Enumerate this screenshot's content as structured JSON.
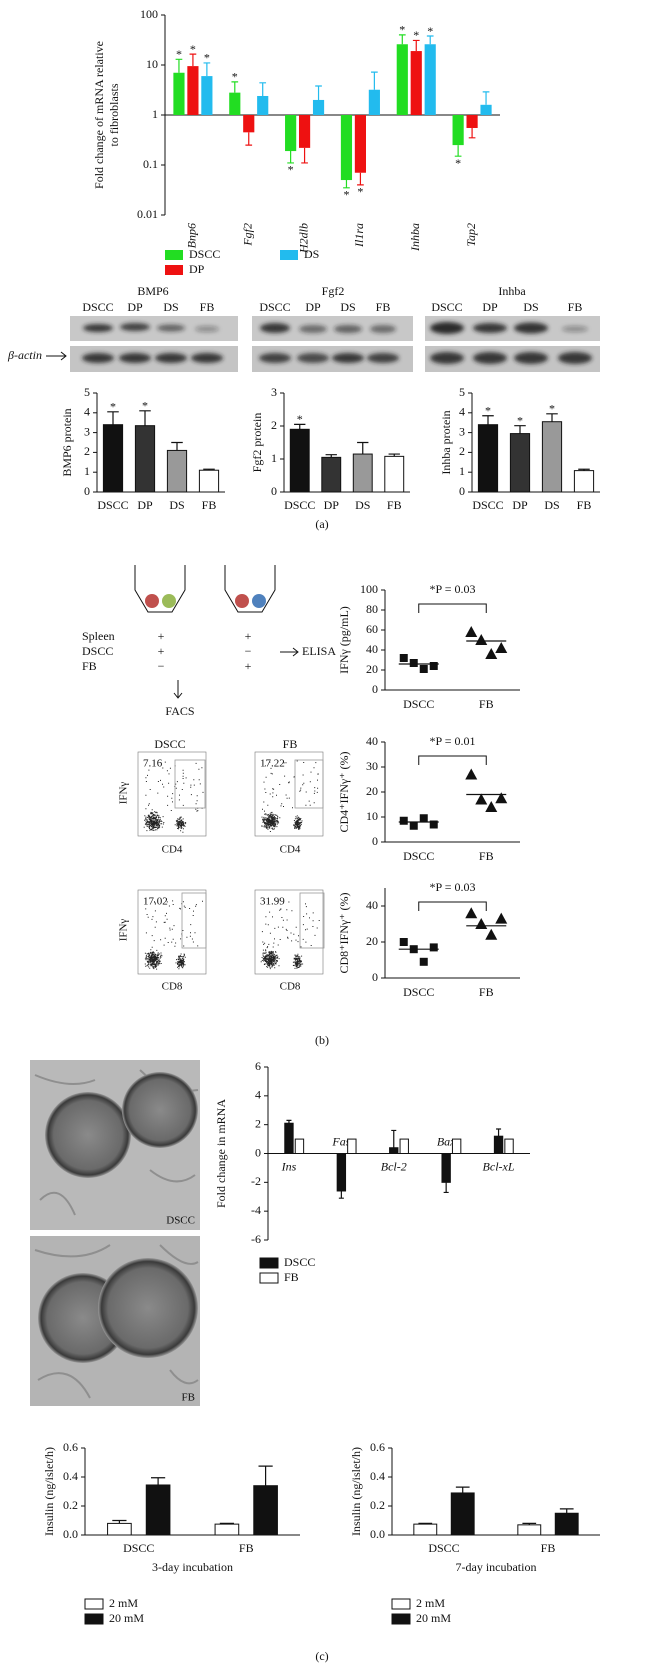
{
  "chart_data": [
    {
      "type": "bar",
      "log_scale": true,
      "ylabel": [
        "Fold change of mRNA relative",
        "to fibroblasts"
      ],
      "ylim": [
        0.01,
        100
      ],
      "yticks": [
        0.01,
        0.1,
        1,
        10,
        100
      ],
      "categories": [
        "Bnp6",
        "Fgf2",
        "H2dlb",
        "Il1ra",
        "Inhba",
        "Tap2"
      ],
      "category_style": "italic",
      "series": [
        {
          "name": "DSCC",
          "color": "#22dd22",
          "values": [
            7,
            2.8,
            0.19,
            0.05,
            26,
            0.25
          ],
          "errors": [
            6,
            1.8,
            0.08,
            0.015,
            14,
            0.1
          ],
          "significance": [
            "*",
            "*",
            "*",
            "*",
            "*",
            "*"
          ]
        },
        {
          "name": "DP",
          "color": "#ee1111",
          "values": [
            9.5,
            0.45,
            0.22,
            0.07,
            19,
            0.55
          ],
          "errors": [
            7,
            0.2,
            0.11,
            0.03,
            12,
            0.2
          ],
          "significance": [
            "*",
            null,
            null,
            "*",
            "*",
            null
          ]
        },
        {
          "name": "DS",
          "color": "#22bbee",
          "values": [
            6,
            2.4,
            2.0,
            3.2,
            26,
            1.6
          ],
          "errors": [
            5,
            2,
            1.8,
            4,
            12,
            1.3
          ],
          "significance": [
            "*",
            null,
            null,
            null,
            "*",
            null
          ]
        }
      ]
    },
    {
      "type": "bar",
      "ylabel": "BMP6 protein",
      "ylim": [
        0,
        5
      ],
      "yticks": [
        0,
        1,
        2,
        3,
        4,
        5
      ],
      "categories": [
        "DSCC",
        "DP",
        "DS",
        "FB"
      ],
      "series": [
        {
          "colors": [
            "#111111",
            "#333333",
            "#999999",
            "#ffffff"
          ],
          "values": [
            3.4,
            3.35,
            2.1,
            1.1
          ],
          "errors": [
            0.65,
            0.75,
            0.4,
            0.05
          ],
          "significance": [
            "*",
            "*",
            null,
            null
          ]
        }
      ]
    },
    {
      "type": "bar",
      "ylabel": "Fgf2 protein",
      "ylim": [
        0,
        3
      ],
      "yticks": [
        0,
        1,
        2,
        3
      ],
      "categories": [
        "DSCC",
        "DP",
        "DS",
        "FB"
      ],
      "series": [
        {
          "colors": [
            "#111111",
            "#333333",
            "#999999",
            "#ffffff"
          ],
          "values": [
            1.9,
            1.05,
            1.15,
            1.08
          ],
          "errors": [
            0.15,
            0.08,
            0.35,
            0.07
          ],
          "significance": [
            "*",
            null,
            null,
            null
          ]
        }
      ]
    },
    {
      "type": "bar",
      "ylabel": "Inhba protein",
      "ylim": [
        0,
        5
      ],
      "yticks": [
        0,
        1,
        2,
        3,
        4,
        5
      ],
      "categories": [
        "DSCC",
        "DP",
        "DS",
        "FB"
      ],
      "series": [
        {
          "colors": [
            "#111111",
            "#333333",
            "#999999",
            "#ffffff"
          ],
          "values": [
            3.4,
            2.95,
            3.55,
            1.08
          ],
          "errors": [
            0.45,
            0.4,
            0.4,
            0.07
          ],
          "significance": [
            "*",
            "*",
            "*",
            null
          ]
        }
      ]
    },
    {
      "type": "strip",
      "ylabel": "IFNγ (pg/mL)",
      "ylim": [
        0,
        100
      ],
      "yticks": [
        0,
        20,
        40,
        60,
        80,
        100
      ],
      "categories": [
        "DSCC",
        "FB"
      ],
      "markers": [
        "square",
        "triangle"
      ],
      "values": [
        [
          32,
          27,
          21,
          24
        ],
        [
          58,
          50,
          36,
          42
        ]
      ],
      "means": [
        26,
        49
      ],
      "annotation": "*P = 0.03"
    },
    {
      "type": "strip",
      "ylabel": "CD4⁺IFNγ⁺ (%)",
      "ylim": [
        0,
        40
      ],
      "yticks": [
        0,
        10,
        20,
        30,
        40
      ],
      "categories": [
        "DSCC",
        "FB"
      ],
      "markers": [
        "square",
        "triangle"
      ],
      "values": [
        [
          8.5,
          6.5,
          9.5,
          7
        ],
        [
          27,
          17,
          14,
          17.5
        ]
      ],
      "means": [
        8,
        19
      ],
      "annotation": "*P = 0.01"
    },
    {
      "type": "strip",
      "ylabel": "CD8⁺IFNγ⁺ (%)",
      "ylim": [
        0,
        50
      ],
      "yticks": [
        0,
        20,
        40
      ],
      "categories": [
        "DSCC",
        "FB"
      ],
      "markers": [
        "square",
        "triangle"
      ],
      "values": [
        [
          20,
          16,
          9,
          17
        ],
        [
          36,
          30,
          24,
          33
        ]
      ],
      "means": [
        16,
        29
      ],
      "annotation": "*P = 0.03"
    },
    {
      "type": "bar",
      "ylabel": "Fold change in mRNA",
      "ylim": [
        -6,
        6
      ],
      "yticks": [
        -6,
        -4,
        -2,
        0,
        2,
        4,
        6
      ],
      "categories": [
        "Ins",
        "Fas",
        "Bcl-2",
        "Bax",
        "Bcl-xL"
      ],
      "category_style": "italic",
      "series": [
        {
          "name": "DSCC",
          "color": "#111111",
          "values": [
            2.1,
            -2.6,
            0.4,
            -2.0,
            1.2
          ],
          "errors": [
            0.2,
            0.5,
            1.2,
            0.7,
            0.5
          ]
        },
        {
          "name": "FB",
          "color": "#ffffff",
          "values": [
            1,
            1,
            1,
            1,
            1
          ]
        }
      ]
    },
    {
      "type": "bar",
      "ylabel": "Insulin (ng/islet/h)",
      "xlabel": "3-day incubation",
      "ylim": [
        0,
        0.6
      ],
      "yticks": [
        {
          "value": 0,
          "label": "0.0"
        },
        0.2,
        0.4,
        0.6
      ],
      "categories": [
        "DSCC",
        "FB"
      ],
      "series": [
        {
          "name": "2 mM",
          "color": "#ffffff",
          "values": [
            0.08,
            0.075
          ],
          "errors": [
            0.02,
            0.005
          ]
        },
        {
          "name": "20 mM",
          "color": "#111111",
          "values": [
            0.345,
            0.34
          ],
          "errors": [
            0.05,
            0.135
          ]
        }
      ]
    },
    {
      "type": "bar",
      "ylabel": "Insulin (ng/islet/h)",
      "xlabel": "7-day incubation",
      "ylim": [
        0,
        0.6
      ],
      "yticks": [
        {
          "value": 0,
          "label": "0.0"
        },
        0.2,
        0.4,
        0.6
      ],
      "categories": [
        "DSCC",
        "FB"
      ],
      "series": [
        {
          "name": "2 mM",
          "color": "#ffffff",
          "values": [
            0.075,
            0.07
          ],
          "errors": [
            0.005,
            0.01
          ]
        },
        {
          "name": "20 mM",
          "color": "#111111",
          "values": [
            0.29,
            0.15
          ],
          "errors": [
            0.04,
            0.03
          ]
        }
      ]
    }
  ],
  "blots": [
    {
      "title": "BMP6",
      "lanes": [
        "DSCC",
        "DP",
        "DS",
        "FB"
      ]
    },
    {
      "title": "Fgf2",
      "lanes": [
        "DSCC",
        "DP",
        "DS",
        "FB"
      ]
    },
    {
      "title": "Inhba",
      "lanes": [
        "DSCC",
        "DP",
        "DS",
        "FB"
      ]
    }
  ],
  "loading_control": "β-actin",
  "diagram": {
    "rows": [
      {
        "label": "Spleen",
        "marks": [
          "+",
          "+"
        ]
      },
      {
        "label": "DSCC",
        "marks": [
          "+",
          "−"
        ]
      },
      {
        "label": "FB",
        "marks": [
          "−",
          "+"
        ]
      }
    ],
    "elisa": "ELISA",
    "facs": "FACS"
  },
  "flow": [
    {
      "y_label": "IFNγ",
      "plots": [
        {
          "title": "DSCC",
          "gate": 7.16,
          "x_label": "CD4"
        },
        {
          "title": "FB",
          "gate": 17.22,
          "x_label": "CD4"
        }
      ]
    },
    {
      "y_label": "IFNγ",
      "plots": [
        {
          "gate": 17.02,
          "x_label": "CD8"
        },
        {
          "gate": 31.99,
          "x_label": "CD8"
        }
      ]
    }
  ],
  "micrographs": [
    "DSCC",
    "FB"
  ],
  "panel_labels": [
    "(a)",
    "(b)",
    "(c)"
  ]
}
